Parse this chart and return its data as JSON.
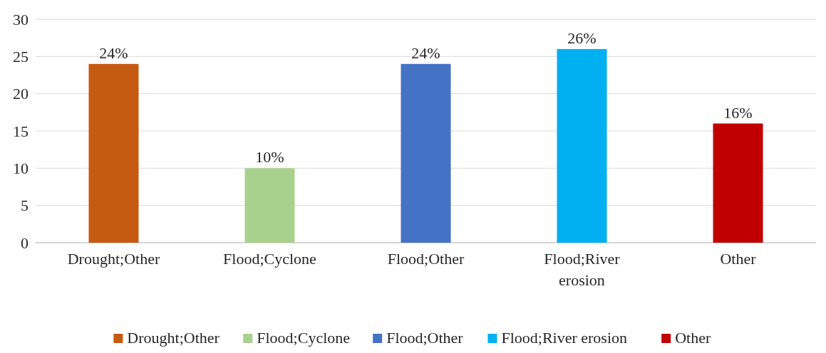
{
  "chart_data": {
    "type": "bar",
    "categories": [
      "Drought;Other",
      "Flood;Cyclone",
      "Flood;Other",
      "Flood;River erosion",
      "Other"
    ],
    "series": [
      {
        "name": "Drought;Other",
        "color": "#c55a11",
        "values": [
          24,
          null,
          null,
          null,
          null
        ],
        "value_labels": [
          "24%",
          null,
          null,
          null,
          null
        ]
      },
      {
        "name": "Flood;Cyclone",
        "color": "#a9d18e",
        "values": [
          null,
          10,
          null,
          null,
          null
        ],
        "value_labels": [
          null,
          "10%",
          null,
          null,
          null
        ]
      },
      {
        "name": "Flood;Other",
        "color": "#4472c4",
        "values": [
          null,
          null,
          24,
          null,
          null
        ],
        "value_labels": [
          null,
          null,
          "24%",
          null,
          null
        ]
      },
      {
        "name": "Flood;River erosion",
        "color": "#00b0f0",
        "values": [
          null,
          null,
          null,
          26,
          null
        ],
        "value_labels": [
          null,
          null,
          null,
          "26%",
          null
        ]
      },
      {
        "name": "Other",
        "color": "#c00000",
        "values": [
          null,
          null,
          null,
          null,
          16
        ],
        "value_labels": [
          null,
          null,
          null,
          null,
          "16%"
        ]
      }
    ],
    "ylim": [
      0,
      30
    ],
    "yticks": [
      0,
      5,
      10,
      15,
      20,
      25,
      30
    ],
    "grid": "y",
    "legend": "bottom"
  }
}
